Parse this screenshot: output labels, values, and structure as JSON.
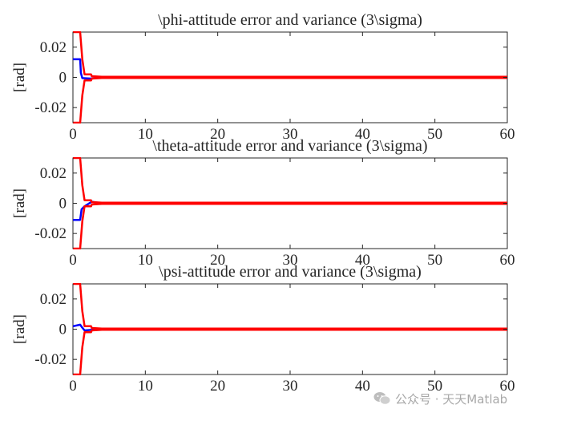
{
  "chart_data": [
    {
      "type": "line",
      "title": "\\phi-attitude error and variance (3\\sigma)",
      "ylabel": "[rad]",
      "xlim": [
        0,
        60
      ],
      "ylim": [
        -0.03,
        0.03
      ],
      "xticks": [
        0,
        10,
        20,
        30,
        40,
        50,
        60
      ],
      "xtick_labels": [
        "0",
        "10",
        "20",
        "30",
        "40",
        "50",
        "60"
      ],
      "yticks": [
        0.02,
        0,
        -0.02
      ],
      "ytick_labels": [
        "0.02",
        "0",
        "-0.02"
      ],
      "grid": false,
      "series": [
        {
          "color": "#0000ff",
          "x": [
            0,
            0.1,
            1.0,
            1.1,
            1.3,
            2.5,
            4,
            60
          ],
          "y": [
            0.012,
            0.012,
            0.012,
            0.003,
            -0.0005,
            -0.0008,
            0,
            0
          ]
        },
        {
          "color": "#ff0000",
          "x": [
            0,
            0.1,
            1.0,
            1.3,
            1.6,
            2.5,
            2.6,
            4,
            60
          ],
          "y": [
            0.03,
            0.03,
            0.03,
            0.012,
            0.002,
            0.002,
            0.0008,
            0.0004,
            0.0004
          ]
        },
        {
          "color": "#ff0000",
          "x": [
            0,
            0.1,
            1.0,
            1.3,
            1.6,
            2.5,
            2.6,
            4,
            60
          ],
          "y": [
            -0.03,
            -0.03,
            -0.03,
            -0.012,
            -0.002,
            -0.002,
            -0.0008,
            -0.0004,
            -0.0004
          ]
        }
      ]
    },
    {
      "type": "line",
      "title": "\\theta-attitude error and variance (3\\sigma)",
      "ylabel": "[rad]",
      "xlim": [
        0,
        60
      ],
      "ylim": [
        -0.03,
        0.03
      ],
      "xticks": [
        0,
        10,
        20,
        30,
        40,
        50,
        60
      ],
      "xtick_labels": [
        "0",
        "10",
        "20",
        "30",
        "40",
        "50",
        "60"
      ],
      "yticks": [
        0.02,
        0,
        -0.02
      ],
      "ytick_labels": [
        "0.02",
        "0",
        "-0.02"
      ],
      "grid": false,
      "series": [
        {
          "color": "#0000ff",
          "x": [
            0,
            0.1,
            1.0,
            1.2,
            1.6,
            2.6,
            4,
            60
          ],
          "y": [
            -0.011,
            -0.011,
            -0.011,
            -0.004,
            -0.002,
            0.001,
            0,
            0
          ]
        },
        {
          "color": "#ff0000",
          "x": [
            0,
            0.1,
            1.0,
            1.3,
            1.6,
            2.5,
            2.6,
            4,
            60
          ],
          "y": [
            0.03,
            0.03,
            0.03,
            0.012,
            0.002,
            0.002,
            0.0008,
            0.0004,
            0.0004
          ]
        },
        {
          "color": "#ff0000",
          "x": [
            0,
            0.1,
            1.0,
            1.3,
            1.6,
            2.5,
            2.6,
            4,
            60
          ],
          "y": [
            -0.03,
            -0.03,
            -0.03,
            -0.012,
            -0.002,
            -0.002,
            -0.0008,
            -0.0004,
            -0.0004
          ]
        }
      ]
    },
    {
      "type": "line",
      "title": "\\psi-attitude error and variance (3\\sigma)",
      "ylabel": "[rad]",
      "xlim": [
        0,
        60
      ],
      "ylim": [
        -0.03,
        0.03
      ],
      "xticks": [
        0,
        10,
        20,
        30,
        40,
        50,
        60
      ],
      "xtick_labels": [
        "0",
        "10",
        "20",
        "30",
        "40",
        "50",
        "60"
      ],
      "yticks": [
        0.02,
        0,
        -0.02
      ],
      "ytick_labels": [
        "0.02",
        "0",
        "-0.02"
      ],
      "grid": false,
      "series": [
        {
          "color": "#0000ff",
          "x": [
            0,
            0.1,
            1.0,
            1.3,
            1.6,
            2.5,
            4,
            60
          ],
          "y": [
            0.002,
            0.002,
            0.003,
            0.001,
            -0.0008,
            -0.0005,
            0,
            0
          ]
        },
        {
          "color": "#ff0000",
          "x": [
            0,
            0.1,
            1.0,
            1.3,
            1.6,
            2.5,
            2.6,
            4,
            60
          ],
          "y": [
            0.03,
            0.03,
            0.03,
            0.012,
            0.002,
            0.002,
            0.0008,
            0.0004,
            0.0004
          ]
        },
        {
          "color": "#ff0000",
          "x": [
            0,
            0.1,
            1.0,
            1.3,
            1.6,
            2.5,
            2.6,
            4,
            60
          ],
          "y": [
            -0.03,
            -0.03,
            -0.03,
            -0.012,
            -0.002,
            -0.002,
            -0.0008,
            -0.0004,
            -0.0004
          ]
        }
      ]
    }
  ],
  "watermark": {
    "text": "公众号 · 天天Matlab",
    "icon": "wechat-icon",
    "color": "#a8a8a8"
  }
}
